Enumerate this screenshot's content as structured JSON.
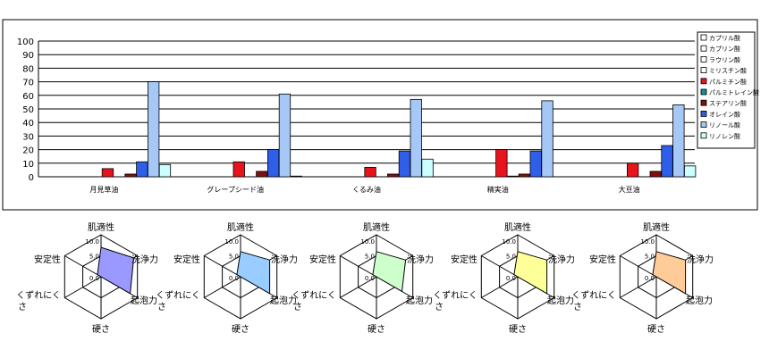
{
  "chart_data": [
    {
      "type": "bar",
      "ylim": [
        0,
        100
      ],
      "yticks": [
        0,
        10,
        20,
        30,
        40,
        50,
        60,
        70,
        80,
        90,
        100
      ],
      "grid": true,
      "legend_placement": "right",
      "categories": [
        "月見草油",
        "グレープシード油",
        "くるみ油",
        "精実油",
        "大豆油"
      ],
      "series": [
        {
          "name": "カプリル酸",
          "color": "#ffffff",
          "values": [
            0,
            0,
            0,
            0,
            0
          ]
        },
        {
          "name": "カプリン酸",
          "color": "#ffffff",
          "values": [
            0,
            0,
            0,
            0,
            0
          ]
        },
        {
          "name": "ラウリン酸",
          "color": "#ffffff",
          "values": [
            0,
            0,
            0,
            0,
            0
          ]
        },
        {
          "name": "ミリスチン酸",
          "color": "#ffffff",
          "values": [
            0,
            0,
            0,
            0,
            0
          ]
        },
        {
          "name": "パルミチン酸",
          "color": "#e8141c",
          "values": [
            6,
            11,
            7,
            20,
            10
          ]
        },
        {
          "name": "パルミトレイン酸",
          "color": "#1a8c8c",
          "values": [
            0,
            0,
            0,
            0.5,
            0
          ]
        },
        {
          "name": "ステアリン酸",
          "color": "#801010",
          "values": [
            2,
            4,
            2,
            2,
            4
          ]
        },
        {
          "name": "オレイン酸",
          "color": "#2f5fe8",
          "values": [
            11,
            20,
            19,
            19,
            23
          ]
        },
        {
          "name": "リノール酸",
          "color": "#a6c8f7",
          "values": [
            70,
            61,
            57,
            56,
            53
          ]
        },
        {
          "name": "リノレン酸",
          "color": "#ccffff",
          "values": [
            9,
            0.5,
            13,
            0,
            8
          ]
        }
      ]
    },
    {
      "type": "radar",
      "axes": [
        "肌適性",
        "洗浄力",
        "起泡力",
        "硬さ",
        "くずれにく\nさ",
        "安定性"
      ],
      "scale_labels": [
        "10.0",
        "5.0",
        "0.0"
      ],
      "rmax": 10,
      "charts": [
        {
          "fill": "#9999ff",
          "values": [
            7,
            9,
            8,
            0,
            0,
            1
          ]
        },
        {
          "fill": "#99ccff",
          "values": [
            6,
            8,
            8,
            0,
            0,
            1
          ]
        },
        {
          "fill": "#ccffcc",
          "values": [
            6,
            8,
            7,
            0,
            0,
            1
          ]
        },
        {
          "fill": "#ffff99",
          "values": [
            6,
            8,
            8,
            0,
            0,
            1
          ]
        },
        {
          "fill": "#ffcc99",
          "values": [
            6,
            8,
            8,
            0,
            0,
            1
          ]
        }
      ]
    }
  ]
}
